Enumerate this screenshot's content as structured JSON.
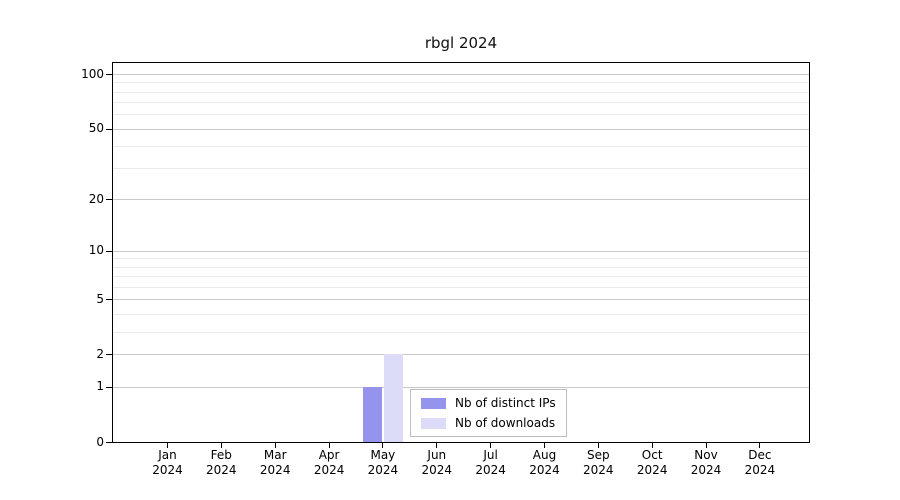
{
  "chart_data": {
    "type": "bar",
    "title": "rbgl 2024",
    "x_categories": [
      "Jan",
      "Feb",
      "Mar",
      "Apr",
      "May",
      "Jun",
      "Jul",
      "Aug",
      "Sep",
      "Oct",
      "Nov",
      "Dec"
    ],
    "x_year": "2024",
    "y_scale": "log1p",
    "ylim": [
      0,
      100
    ],
    "y_ticks": [
      0,
      1,
      2,
      5,
      10,
      20,
      50,
      100
    ],
    "grid": "horizontal-log-minor",
    "legend_position": "inside-bottom-center",
    "series": [
      {
        "name": "Nb of distinct IPs",
        "color": "#9494ec",
        "values": [
          0,
          0,
          0,
          0,
          1,
          0,
          0,
          0,
          0,
          0,
          0,
          0
        ]
      },
      {
        "name": "Nb of downloads",
        "color": "#dcdcf8",
        "values": [
          0,
          0,
          0,
          0,
          2,
          0,
          0,
          0,
          0,
          0,
          0,
          0
        ]
      }
    ]
  }
}
